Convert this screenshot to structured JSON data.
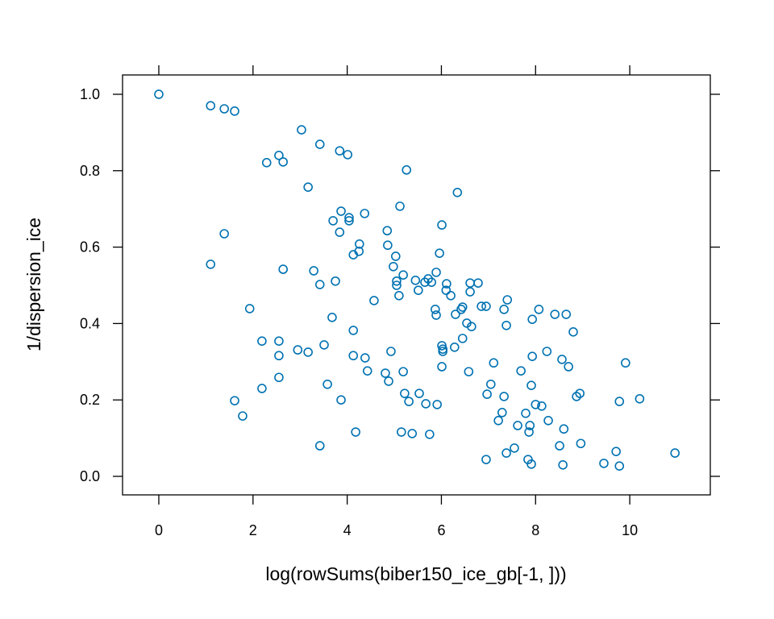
{
  "chart_data": {
    "type": "scatter",
    "xlabel": "log(rowSums(biber150_ice_gb[-1, ]))",
    "ylabel": "1/dispersion_ice",
    "color": "#0072b2",
    "xlim": [
      -0.77,
      11.71
    ],
    "ylim": [
      -0.0485,
      1.0506
    ],
    "xticks": [
      0,
      2,
      4,
      6,
      8,
      10
    ],
    "yticks": [
      {
        "value": 0,
        "label": "0.0"
      },
      0.2,
      0.4,
      0.6,
      0.8,
      {
        "value": 1,
        "label": "1.0"
      }
    ],
    "x": [
      0,
      1.1,
      1.39,
      1.61,
      3.03,
      3.42,
      3.84,
      4.01,
      2.55,
      2.29,
      2.64,
      5.26,
      3.17,
      6.34,
      5.12,
      3.87,
      4.37,
      4.04,
      4.04,
      3.7,
      6.01,
      1.39,
      3.84,
      4.85,
      4.26,
      4.86,
      4.25,
      5.96,
      4.13,
      5.03,
      1.1,
      4.98,
      2.64,
      3.29,
      5.89,
      5.19,
      5.72,
      5.79,
      5.05,
      5.05,
      5.45,
      3.75,
      3.42,
      5.65,
      6.11,
      6.61,
      6.78,
      6.1,
      5.51,
      6.61,
      6.2,
      5.1,
      4.57,
      7.4,
      6.45,
      6.85,
      6.95,
      6.42,
      5.87,
      7.33,
      8.07,
      1.93,
      8.41,
      8.65,
      6.3,
      5.89,
      3.68,
      7.93,
      6.54,
      6.64,
      7.38,
      4.13,
      8.8,
      6.45,
      3.51,
      2.19,
      2.55,
      6.01,
      6.28,
      6.03,
      6.03,
      8.24,
      2.95,
      3.17,
      4.93,
      2.55,
      4.13,
      4.38,
      7.93,
      8.56,
      7.11,
      9.91,
      8.7,
      6.01,
      5.19,
      6.58,
      4.43,
      7.69,
      4.81,
      2.55,
      4.88,
      3.58,
      7.05,
      7.91,
      2.19,
      8.94,
      5.22,
      5.53,
      6.97,
      7.33,
      8.87,
      1.61,
      3.87,
      9.78,
      10.21,
      5.31,
      5.67,
      5.91,
      8.0,
      8.13,
      7.29,
      7.79,
      1.78,
      7.21,
      8.27,
      7.62,
      7.88,
      8.6,
      7.86,
      4.18,
      5.15,
      5.38,
      5.75,
      8.96,
      3.42,
      8.51,
      7.55,
      7.38,
      9.71,
      10.96,
      6.95,
      7.84,
      7.91,
      9.45,
      8.58,
      9.78
    ],
    "y": [
      1.0,
      0.97,
      0.962,
      0.956,
      0.907,
      0.869,
      0.852,
      0.842,
      0.84,
      0.821,
      0.823,
      0.802,
      0.757,
      0.743,
      0.707,
      0.694,
      0.688,
      0.677,
      0.669,
      0.669,
      0.658,
      0.635,
      0.639,
      0.643,
      0.608,
      0.605,
      0.589,
      0.584,
      0.58,
      0.576,
      0.555,
      0.549,
      0.542,
      0.538,
      0.534,
      0.527,
      0.517,
      0.508,
      0.511,
      0.5,
      0.513,
      0.511,
      0.502,
      0.508,
      0.504,
      0.506,
      0.506,
      0.487,
      0.487,
      0.483,
      0.473,
      0.473,
      0.46,
      0.462,
      0.443,
      0.445,
      0.445,
      0.437,
      0.437,
      0.437,
      0.437,
      0.439,
      0.424,
      0.424,
      0.424,
      0.422,
      0.416,
      0.411,
      0.401,
      0.392,
      0.395,
      0.382,
      0.378,
      0.361,
      0.344,
      0.354,
      0.354,
      0.342,
      0.338,
      0.333,
      0.327,
      0.327,
      0.331,
      0.325,
      0.327,
      0.316,
      0.316,
      0.31,
      0.314,
      0.306,
      0.297,
      0.297,
      0.287,
      0.287,
      0.274,
      0.274,
      0.276,
      0.276,
      0.27,
      0.259,
      0.249,
      0.241,
      0.241,
      0.238,
      0.23,
      0.217,
      0.217,
      0.217,
      0.215,
      0.209,
      0.209,
      0.198,
      0.2,
      0.196,
      0.203,
      0.196,
      0.19,
      0.188,
      0.188,
      0.184,
      0.167,
      0.165,
      0.158,
      0.146,
      0.146,
      0.133,
      0.133,
      0.124,
      0.116,
      0.116,
      0.116,
      0.112,
      0.11,
      0.086,
      0.08,
      0.08,
      0.074,
      0.061,
      0.065,
      0.061,
      0.044,
      0.044,
      0.032,
      0.034,
      0.03,
      0.027
    ]
  }
}
